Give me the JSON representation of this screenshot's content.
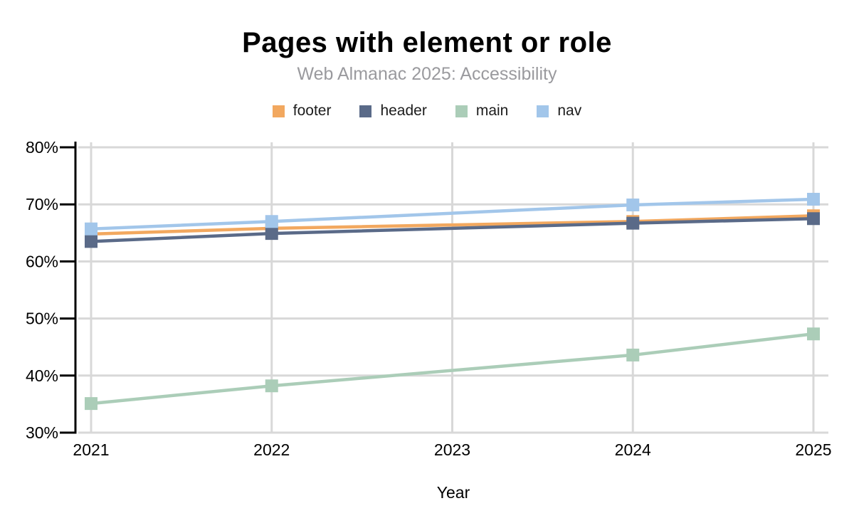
{
  "chart_data": {
    "type": "line",
    "title": "Pages with element or role",
    "subtitle": "Web Almanac 2025: Accessibility",
    "xlabel": "Year",
    "ylabel": "",
    "x": [
      2021,
      2022,
      2023,
      2024,
      2025
    ],
    "ylim": [
      30,
      80
    ],
    "ytick_step": 10,
    "ytick_suffix": "%",
    "grid": true,
    "legend_position": "top",
    "marker": "square",
    "missing_x": [
      2023
    ],
    "series": [
      {
        "name": "footer",
        "color": "#F2A85F",
        "values": [
          64.8,
          65.8,
          null,
          67.0,
          68.0
        ]
      },
      {
        "name": "header",
        "color": "#5A6A88",
        "values": [
          63.5,
          64.9,
          null,
          66.7,
          67.5
        ]
      },
      {
        "name": "main",
        "color": "#ABCDB8",
        "values": [
          35.1,
          38.2,
          null,
          43.6,
          47.3
        ]
      },
      {
        "name": "nav",
        "color": "#A2C6EA",
        "values": [
          65.7,
          67.0,
          null,
          69.9,
          70.9
        ]
      }
    ],
    "colors": {
      "grid": "#D8D8D8",
      "axis": "#000000",
      "tick_label": "#000000",
      "title": "#000000",
      "subtitle": "#9A9A9E",
      "background": "#FFFFFF"
    }
  }
}
